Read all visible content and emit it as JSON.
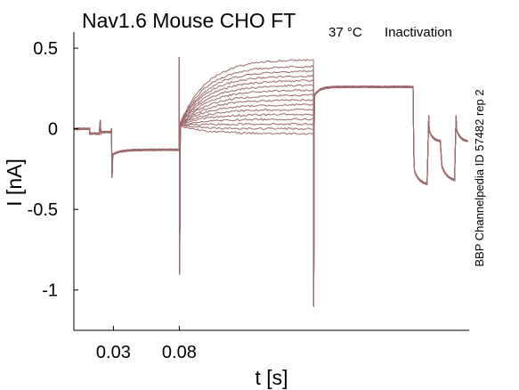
{
  "chart_data": {
    "type": "line",
    "title_parts": {
      "main": "Nav1.6  Mouse  CHO FT",
      "subscript": "37 °C",
      "suffix": "Inactivation"
    },
    "xlabel": "t [s]",
    "ylabel": "I [nA]",
    "side_note": "BBP Channelpedia ID 57482 rep 2",
    "xlim": [
      0.0,
      0.3
    ],
    "ylim": [
      -1.25,
      0.6
    ],
    "x_ticks": [
      0.03,
      0.08
    ],
    "x_tick_labels": [
      "0.03",
      "0.08"
    ],
    "y_ticks": [
      0.5,
      0,
      -0.5,
      -1
    ],
    "y_tick_labels": [
      "0.5",
      "0",
      "-0.5",
      "-1"
    ],
    "grid": false,
    "trace_color": "#9c6b6b",
    "num_sweeps": 16,
    "protocol": {
      "prepulse_start": 0.08,
      "prepulse_end": 0.182,
      "test_end": 0.258,
      "baseline_current": 0.0,
      "hold_current": -0.13,
      "test_steady_current": 0.26,
      "prepulse_final_currents": [
        0.43,
        0.39,
        0.36,
        0.33,
        0.3,
        0.27,
        0.24,
        0.21,
        0.18,
        0.15,
        0.12,
        0.09,
        0.06,
        0.03,
        0.0,
        -0.03
      ],
      "prepulse_spike_min": -0.9,
      "prepulse_spike_max": 0.44,
      "test_spike_min": -1.1,
      "tail_high": 0.08,
      "tail_low": -0.25
    }
  }
}
